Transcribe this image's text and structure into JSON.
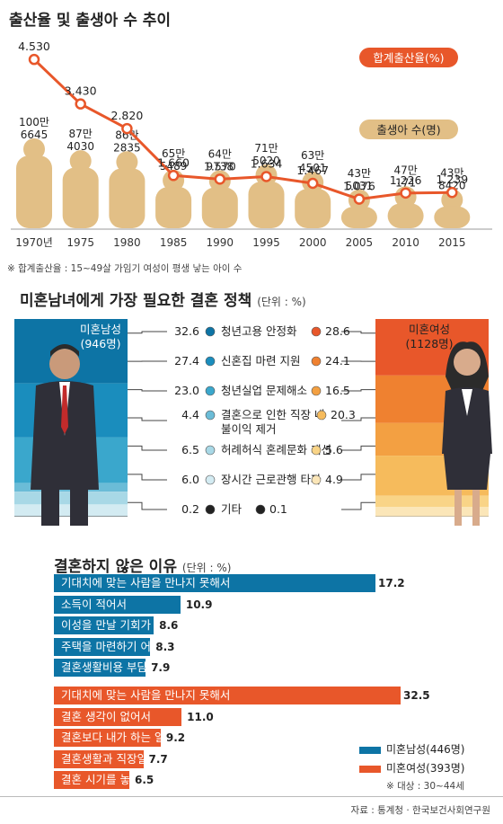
{
  "chart_data": [
    {
      "type": "line",
      "title": "출산율 및 출생아 수 추이",
      "categories": [
        "1970년",
        "1975",
        "1980",
        "1985",
        "1990",
        "1995",
        "2000",
        "2005",
        "2010",
        "2015"
      ],
      "series": [
        {
          "name": "합계출산율(%)",
          "values": [
            4.53,
            3.43,
            2.82,
            1.66,
            1.57,
            1.634,
            1.467,
            1.076,
            1.226,
            1.239
          ],
          "labels": [
            "4.530",
            "3.430",
            "2.820",
            "1.660",
            "1.570",
            "1.634",
            "1.467",
            "1.076",
            "1.226",
            "1.239"
          ],
          "color": "#e8572a"
        },
        {
          "name": "출생아 수(명)",
          "values": [
            1006645,
            874030,
            862835,
            655489,
            649738,
            715020,
            634501,
            435031,
            470171,
            438420
          ],
          "labels": [
            [
              "100만",
              "6645"
            ],
            [
              "87만",
              "4030"
            ],
            [
              "86만",
              "2835"
            ],
            [
              "65만",
              "5489"
            ],
            [
              "64만",
              "9738"
            ],
            [
              "71만",
              "5020"
            ],
            [
              "63만",
              "4501"
            ],
            [
              "43만",
              "5031"
            ],
            [
              "47만",
              "171"
            ],
            [
              "43만",
              "8420"
            ]
          ],
          "color": "#e2bf86"
        }
      ],
      "footnote": "※ 합계출산율 : 15~49살 가임기 여성이 평생 낳는 아이 수"
    },
    {
      "type": "table",
      "title": "미혼남녀에게 가장 필요한 결혼 정책",
      "unit": "(단위 : %)",
      "male_label": [
        "미혼남성",
        "(946명)"
      ],
      "female_label": [
        "미혼여성",
        "(1128명)"
      ],
      "categories": [
        [
          "청년고용 안정화"
        ],
        [
          "신혼집 마련 지원"
        ],
        [
          "청년실업 문제해소"
        ],
        [
          "결혼으로 인한 직장 내",
          "불이익 제거"
        ],
        [
          "허례허식 혼례문화 개선"
        ],
        [
          "장시간 근로관행 타파"
        ],
        [
          "기타"
        ]
      ],
      "male_values": [
        "32.6",
        "27.4",
        "23.0",
        "4.4",
        "6.5",
        "6.0",
        "0.2"
      ],
      "female_values": [
        "28.6",
        "24.1",
        "16.5",
        "20.3",
        "5.6",
        "4.9",
        "0.1"
      ],
      "male_colors": [
        "#0d74a5",
        "#1a8dbd",
        "#3aa7cc",
        "#6bbcd7",
        "#a8d8e6",
        "#d3ebf2",
        "#222222"
      ],
      "female_colors": [
        "#e8572a",
        "#ef8130",
        "#f3a042",
        "#f6bb5c",
        "#f9d487",
        "#fbe6b8",
        "#222222"
      ]
    },
    {
      "type": "bar",
      "title": "결혼하지 않은 이유",
      "unit": "(단위 : %)",
      "series": [
        {
          "name": "미혼남성(446명)",
          "color": "#0d74a5",
          "categories": [
            "기대치에 맞는 사람을 만나지 못해서",
            "소득이 적어서",
            "이성을 만날 기회가 없어서",
            "주택을 마련하기 어려워서",
            "결혼생활비용 부담이 커서"
          ],
          "values": [
            17.2,
            10.9,
            8.6,
            8.3,
            7.9
          ],
          "labels": [
            "17.2",
            "10.9",
            "8.6",
            "8.3",
            "7.9"
          ]
        },
        {
          "name": "미혼여성(393명)",
          "color": "#e8572a",
          "categories": [
            "기대치에 맞는 사람을 만나지 못해서",
            "결혼 생각이 없어서",
            "결혼보다 내가 하는 일에 더 충실하고 싶어서",
            "결혼생활과 직장일 동시 수행 곤란",
            "결혼 시기를 놓쳐서"
          ],
          "values": [
            32.5,
            11.0,
            9.2,
            7.7,
            6.5
          ],
          "labels": [
            "32.5",
            "11.0",
            "9.2",
            "7.7",
            "6.5"
          ]
        }
      ],
      "note": "※ 대상 : 30~44세"
    }
  ],
  "source": "자료 : 통계청 · 한국보건사회연구원"
}
